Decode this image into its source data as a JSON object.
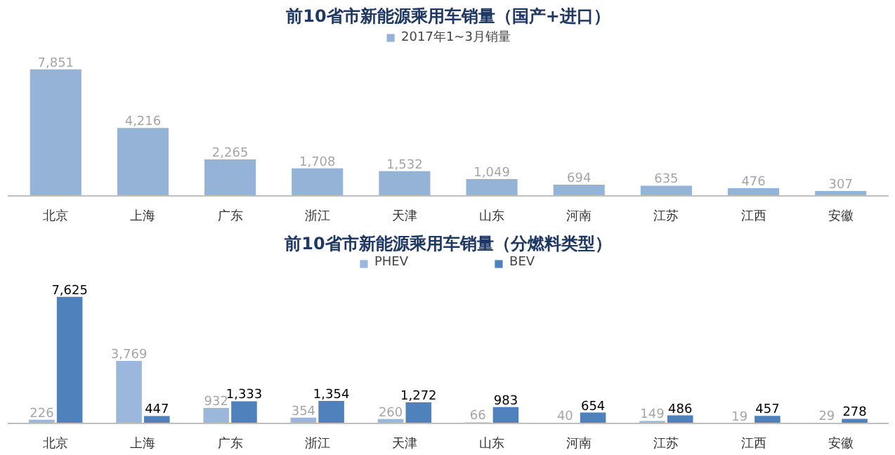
{
  "chart_data": [
    {
      "type": "bar",
      "title": "前10省市新能源乘用车销量（国产+进口）",
      "categories": [
        "北京",
        "上海",
        "广东",
        "浙江",
        "天津",
        "山东",
        "河南",
        "江苏",
        "江西",
        "安徽"
      ],
      "series": [
        {
          "name": "2017年1~3月销量",
          "color": "#95b3d7",
          "values": [
            7851,
            4216,
            2265,
            1708,
            1532,
            1049,
            694,
            635,
            476,
            307
          ],
          "value_labels": [
            "7,851",
            "4,216",
            "2,265",
            "1,708",
            "1,532",
            "1,049",
            "694",
            "635",
            "476",
            "307"
          ]
        }
      ],
      "legend": "top",
      "grid": false,
      "tick_labels": "x"
    },
    {
      "type": "bar",
      "title": "前10省市新能源乘用车销量（分燃料类型）",
      "categories": [
        "北京",
        "上海",
        "广东",
        "浙江",
        "天津",
        "山东",
        "河南",
        "江苏",
        "江西",
        "安徽"
      ],
      "series": [
        {
          "name": "PHEV",
          "color": "#9bb7dc",
          "values": [
            226,
            3769,
            932,
            354,
            260,
            66,
            40,
            149,
            19,
            29
          ],
          "value_labels": [
            "226",
            "3,769",
            "932",
            "354",
            "260",
            "66",
            "40",
            "149",
            "19",
            "29"
          ]
        },
        {
          "name": "BEV",
          "color": "#4f81bd",
          "values": [
            7625,
            447,
            1333,
            1354,
            1272,
            983,
            654,
            486,
            457,
            278
          ],
          "value_labels": [
            "7,625",
            "447",
            "1,333",
            "1,354",
            "1,272",
            "983",
            "654",
            "486",
            "457",
            "278"
          ]
        }
      ],
      "legend": "top",
      "grid": false,
      "tick_labels": "x"
    }
  ]
}
